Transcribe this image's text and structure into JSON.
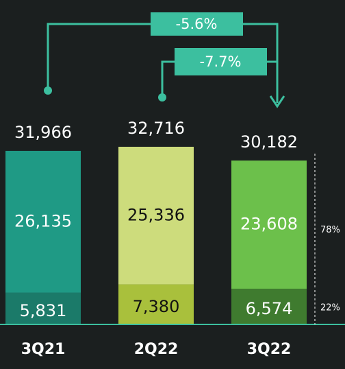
{
  "chart_data": {
    "type": "stacked_bar",
    "categories": [
      "3Q21",
      "2Q22",
      "3Q22"
    ],
    "series": [
      {
        "colors": [
          "#1b7a69",
          "#a9c03c",
          "#3f7b2f"
        ],
        "label_colors": [
          "#ffffff",
          "#111111",
          "#ffffff"
        ],
        "values": [
          5831,
          7380,
          6574
        ],
        "value_labels": [
          "5,831",
          "7,380",
          "6,574"
        ]
      },
      {
        "colors": [
          "#1f9a85",
          "#cddc7c",
          "#6cc04b"
        ],
        "label_colors": [
          "#ffffff",
          "#111111",
          "#ffffff"
        ],
        "values": [
          26135,
          25336,
          23608
        ],
        "value_labels": [
          "26,135",
          "25,336",
          "23,608"
        ]
      }
    ],
    "totals": [
      31966,
      32716,
      30182
    ],
    "total_labels": [
      "31,966",
      "32,716",
      "30,182"
    ],
    "changes": [
      {
        "value": -5.6,
        "label": "-5.6%"
      },
      {
        "value": -7.7,
        "label": "-7.7%"
      }
    ],
    "shares": [
      {
        "value": 78,
        "label": "78%"
      },
      {
        "value": 22,
        "label": "22%"
      }
    ],
    "accent_color": "#3cbf9f"
  }
}
